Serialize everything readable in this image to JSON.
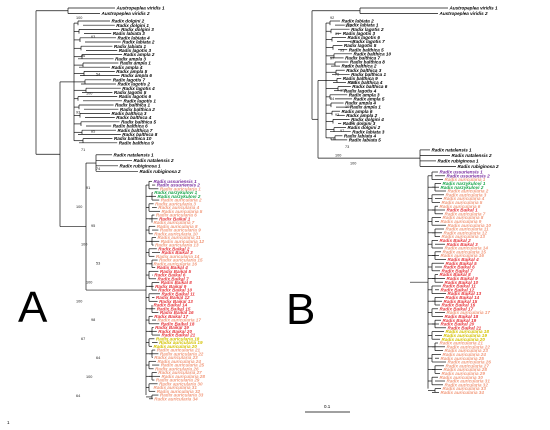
{
  "figure": {
    "panel_a": {
      "letter": "A",
      "outgroup": [
        "Austropeplea viridis 1",
        "Austropeplea viridis 2"
      ],
      "group_black": [
        "Radix dolgini 2",
        "Radix dolgini 1",
        "Radix dolgini 3",
        "Radix labiata 3",
        "Radix labiata 4",
        "Radix labiata 2",
        "Radix labiata 1",
        "Radix lagotis 3",
        "Radix ampla 2",
        "Radix ampla 3",
        "Radix ampla 1",
        "Radix ampla 4",
        "Radix ampla 5",
        "Radix ampla 6",
        "Radix lagotis 7",
        "Radix lagotis 2",
        "Radix lagotis 4",
        "Radix lagotis 5",
        "Radix lagotis 6",
        "Radix lagotis 1",
        "Radix balthica 1",
        "Radix balthica 2",
        "Radix balthica 3",
        "Radix balthica 4",
        "Radix balthica 5",
        "Radix balthica 6",
        "Radix balthica 7",
        "Radix balthica 8",
        "Radix balthica 10",
        "Radix balthica 9"
      ],
      "group_mid": [
        "Radix natalensis 1",
        "Radix natalensis 2",
        "Radix rubiginosa 1",
        "Radix rubiginosa 2"
      ],
      "clade_tips": [
        {
          "label": "Radix ussuriensis 1",
          "color": "#7a2fa0"
        },
        {
          "label": "Radix ussuriensis 2",
          "color": "#7a2fa0"
        },
        {
          "label": "Radix auricularia 1",
          "color": "#f29a7c"
        },
        {
          "label": "Radix narzykulovi 1",
          "color": "#1aa64b"
        },
        {
          "label": "Radix narzykulovi 2",
          "color": "#1aa64b"
        },
        {
          "label": "Radix auricularia 2",
          "color": "#f29a7c"
        },
        {
          "label": "Radix auricularia 3",
          "color": "#f29a7c"
        },
        {
          "label": "Radix auricularia 4",
          "color": "#f29a7c"
        },
        {
          "label": "Radix auricularia 5",
          "color": "#f29a7c"
        },
        {
          "label": "Radix auricularia 6",
          "color": "#f29a7c"
        },
        {
          "label": "Radix Baikal 1",
          "color": "#e8383d"
        },
        {
          "label": "Radix auricularia 7",
          "color": "#f29a7c"
        },
        {
          "label": "Radix auricularia 8",
          "color": "#f29a7c"
        },
        {
          "label": "Radix auricularia 9",
          "color": "#f29a7c"
        },
        {
          "label": "Radix auricularia 10",
          "color": "#f29a7c"
        },
        {
          "label": "Radix auricularia 11",
          "color": "#f29a7c"
        },
        {
          "label": "Radix auricularia 12",
          "color": "#f29a7c"
        },
        {
          "label": "Radix auricularia 13",
          "color": "#f29a7c"
        },
        {
          "label": "Radix Baikal 2",
          "color": "#e8383d"
        },
        {
          "label": "Radix Baikal 3",
          "color": "#e8383d"
        },
        {
          "label": "Radix auricularia 14",
          "color": "#f29a7c"
        },
        {
          "label": "Radix auricularia 15",
          "color": "#f29a7c"
        },
        {
          "label": "Radix auricularia 16",
          "color": "#f29a7c"
        },
        {
          "label": "Radix Baikal 4",
          "color": "#e8383d"
        },
        {
          "label": "Radix Baikal 5",
          "color": "#e8383d"
        },
        {
          "label": "Radix Baikal 6",
          "color": "#e8383d"
        },
        {
          "label": "Radix Baikal 7",
          "color": "#e8383d"
        },
        {
          "label": "Radix Baikal 8",
          "color": "#e8383d"
        },
        {
          "label": "Radix Baikal 9",
          "color": "#e8383d"
        },
        {
          "label": "Radix Baikal 10",
          "color": "#e8383d"
        },
        {
          "label": "Radix Baikal 11",
          "color": "#e8383d"
        },
        {
          "label": "Radix Baikal 12",
          "color": "#e8383d"
        },
        {
          "label": "Radix Baikal 13",
          "color": "#e8383d"
        },
        {
          "label": "Radix Baikal 14",
          "color": "#e8383d"
        },
        {
          "label": "Radix Baikal 15",
          "color": "#e8383d"
        },
        {
          "label": "Radix Baikal 16",
          "color": "#e8383d"
        },
        {
          "label": "Radix Baikal 17",
          "color": "#e8383d"
        },
        {
          "label": "Radix auricularia 17",
          "color": "#f29a7c"
        },
        {
          "label": "Radix Baikal 18",
          "color": "#e8383d"
        },
        {
          "label": "Radix Baikal 19",
          "color": "#e8383d"
        },
        {
          "label": "Radix Baikal 20",
          "color": "#e8383d"
        },
        {
          "label": "Radix Baikal 21",
          "color": "#e8383d"
        },
        {
          "label": "Radix auricularia 18",
          "color": "#d4c200"
        },
        {
          "label": "Radix auricularia 19",
          "color": "#d4c200"
        },
        {
          "label": "Radix auricularia 20",
          "color": "#d4c200"
        },
        {
          "label": "Radix auricularia 21",
          "color": "#f29a7c"
        },
        {
          "label": "Radix auricularia 22",
          "color": "#f29a7c"
        },
        {
          "label": "Radix auricularia 23",
          "color": "#f29a7c"
        },
        {
          "label": "Radix auricularia 24",
          "color": "#f29a7c"
        },
        {
          "label": "Radix auricularia 25",
          "color": "#f29a7c"
        },
        {
          "label": "Radix auricularia 26",
          "color": "#f29a7c"
        },
        {
          "label": "Radix auricularia 27",
          "color": "#f29a7c"
        },
        {
          "label": "Radix auricularia 28",
          "color": "#f29a7c"
        },
        {
          "label": "Radix auricularia 29",
          "color": "#f29a7c"
        },
        {
          "label": "Radix auricularia 30",
          "color": "#f29a7c"
        },
        {
          "label": "Radix auricularia 31",
          "color": "#f29a7c"
        },
        {
          "label": "Radix auricularia 32",
          "color": "#f29a7c"
        },
        {
          "label": "Radix auricularia 33",
          "color": "#f29a7c"
        },
        {
          "label": "Radix auricularia 34",
          "color": "#f29a7c"
        }
      ],
      "support_values": [
        "100",
        "63",
        "96",
        "54",
        "100",
        "93",
        "85",
        "71",
        "74",
        "91",
        "100",
        "95",
        "100",
        "53",
        "100",
        "100",
        "98",
        "67",
        "64",
        "100",
        "64"
      ]
    },
    "panel_b": {
      "letter": "B",
      "outgroup": [
        "Austropeplea viridis 1",
        "Austropeplea viridis 2"
      ],
      "group_black": [
        "Radix labiata 2",
        "Radix labiata 1",
        "Radix lagotis 2",
        "Radix lagotis 3",
        "Radix lagotis 6",
        "Radix lagotis 7",
        "Radix lagotis 5",
        "Radix balthica 5",
        "Radix balthica 10",
        "Radix balthica 7",
        "Radix balthica 8",
        "Radix balthica 2",
        "Radix balthica 3",
        "Radix balthica 1",
        "Radix balthica 9",
        "Radix balthica 4",
        "Radix balthica 6",
        "Radix lagotis 4",
        "Radix ampla 3",
        "Radix ampla 5",
        "Radix ampla 4",
        "Radix ampla 1",
        "Radix ampla 6",
        "Radix ampla 2",
        "Radix dolgini 4",
        "Radix dolgini 3",
        "Radix dolgini 2",
        "Radix labiata 3",
        "Radix labiata 4",
        "Radix labiata 5"
      ],
      "group_mid": [
        "Radix natalensis 1",
        "Radix natalensis 2",
        "Radix rubiginosa 1",
        "Radix rubiginosa 2"
      ],
      "support_values": [
        "92",
        "100",
        "61",
        "81",
        "93",
        "97",
        "67",
        "75",
        "100",
        "100",
        "84",
        "100",
        "93",
        "92",
        "97",
        "91",
        "73",
        "100",
        "100"
      ],
      "scale_label": "0.1"
    },
    "corner_mark": "1"
  }
}
